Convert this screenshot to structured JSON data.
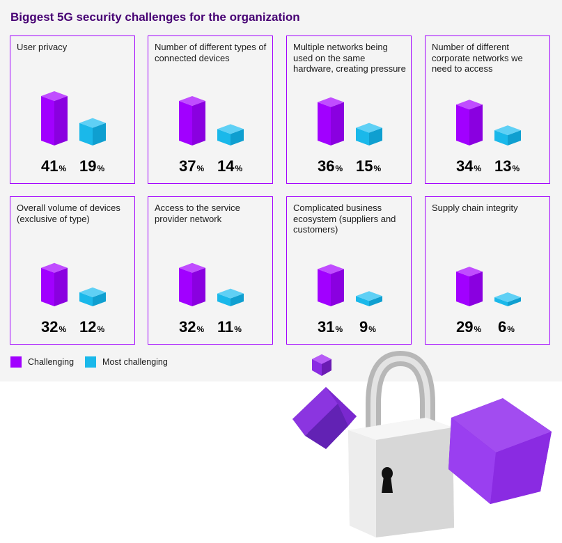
{
  "title": "Biggest 5G security challenges for the organization",
  "colors": {
    "challenging": "#a100ff",
    "most_challenging": "#1ab8ea",
    "border": "#a100ff",
    "title": "#460073"
  },
  "legend": [
    {
      "label": "Challenging",
      "color": "#a100ff"
    },
    {
      "label": "Most challenging",
      "color": "#1ab8ea"
    }
  ],
  "percent_symbol": "%",
  "chart_data": {
    "type": "bar",
    "title": "Biggest 5G security challenges for the organization",
    "categories": [
      "User privacy",
      "Number of different types of connected devices",
      "Multiple networks being used on the same hardware, creating pressure",
      "Number of different corporate networks we need to access",
      "Overall volume of devices (exclusive of type)",
      "Access to the service provider network",
      "Complicated business ecosystem (suppliers and customers)",
      "Supply chain integrity"
    ],
    "series": [
      {
        "name": "Challenging",
        "values": [
          41,
          37,
          36,
          34,
          32,
          32,
          31,
          29
        ]
      },
      {
        "name": "Most challenging",
        "values": [
          19,
          14,
          15,
          13,
          12,
          11,
          9,
          6
        ]
      }
    ],
    "unit": "%",
    "legend_position": "bottom-left",
    "grid": false
  }
}
